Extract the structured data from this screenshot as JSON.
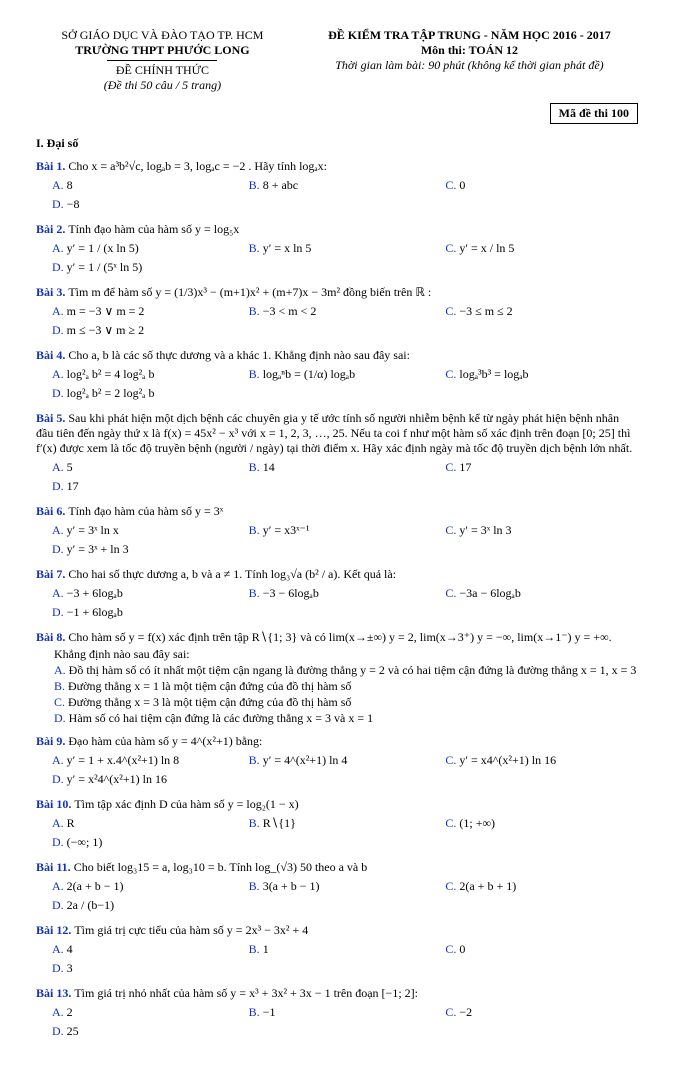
{
  "header": {
    "left1": "SỞ GIÁO DỤC VÀ ĐÀO TẠO TP. HCM",
    "left2": "TRƯỜNG THPT PHƯỚC LONG",
    "left3": "ĐỀ CHÍNH THỨC",
    "left4": "(Đề thi 50 câu / 5 trang)",
    "right1": "ĐỀ KIỂM TRA TẬP TRUNG - NĂM HỌC 2016 - 2017",
    "right2": "Môn thi: TOÁN 12",
    "right3": "Thời gian làm bài: 90 phút (không kể thời gian phát đề)",
    "code": "Mã đề thi 100"
  },
  "section": "I. Đại số",
  "problems": [
    {
      "num": "Bài 1.",
      "text": "Cho x = a³b²√c, logₐb = 3, logₐc = −2 . Hãy tính logₐx:",
      "choices": [
        "8",
        "8 + abc",
        "0",
        "−8"
      ]
    },
    {
      "num": "Bài 2.",
      "text": "Tính đạo hàm của hàm số y = log₅x",
      "choices": [
        "y′ = 1 / (x ln 5)",
        "y′ = x ln 5",
        "y′ = x / ln 5",
        "y′ = 1 / (5ˣ ln 5)"
      ]
    },
    {
      "num": "Bài 3.",
      "text": "Tìm m để hàm số y = (1/3)x³ − (m+1)x² + (m+7)x − 3m² đồng biến trên ℝ :",
      "choices": [
        "m = −3 ∨ m = 2",
        "−3 < m < 2",
        "−3 ≤ m ≤ 2",
        "m ≤ −3 ∨ m ≥ 2"
      ]
    },
    {
      "num": "Bài 4.",
      "text": "Cho a, b là các số thực dương và a khác 1. Khẳng định nào sau đây sai:",
      "choices": [
        "log²ₐ b² = 4 log²ₐ b",
        "logₐⁿb = (1/α) logₐb",
        "logₐ³b³ = logₐb",
        "log²ₐ b² = 2 log²ₐ b"
      ]
    },
    {
      "num": "Bài 5.",
      "text": "Sau khi phát hiện một dịch bệnh các chuyên gia y tế ước tính số người nhiễm bệnh kể từ ngày phát hiện bệnh nhân đầu tiên đến ngày thứ x là f(x) = 45x² − x³ với x = 1, 2, 3, …, 25. Nếu ta coi f như một hàm số xác định trên đoạn [0; 25] thì f′(x) được xem là tốc độ truyền bệnh (người / ngày) tại thời điểm x. Hãy xác định ngày mà tốc độ truyền dịch bệnh lớn nhất.",
      "choices": [
        "5",
        "14",
        "17",
        "17"
      ]
    },
    {
      "num": "Bài 6.",
      "text": "Tính đạo hàm của hàm số y = 3ˣ",
      "choices": [
        "y′ = 3ˣ ln x",
        "y′ = x3ˣ⁻¹",
        "y′ = 3ˣ ln 3",
        "y′ = 3ˣ + ln 3"
      ]
    },
    {
      "num": "Bài 7.",
      "text": "Cho hai số thực dương a, b và a ≠ 1. Tính log₃√a (b² / a). Kết quả là:",
      "choices": [
        "−3 + 6logₐb",
        "−3 − 6logₐb",
        "−3a − 6logₐb",
        "−1 + 6logₐb"
      ]
    },
    {
      "num": "Bài 8.",
      "text": "Cho hàm số y = f(x) xác định trên tập R∖{1; 3} và có lim(x→±∞) y = 2, lim(x→3⁺) y = −∞, lim(x→1⁻) y = +∞.",
      "subtext": "Khẳng định nào sau đây sai:",
      "subchoices": [
        "Đồ thị hàm số có ít nhất một tiệm cận ngang là đường thẳng y = 2 và có hai tiệm cận đứng là đường thẳng x = 1, x = 3",
        "Đường thẳng x = 1 là một tiệm cận đứng của đồ thị hàm số",
        "Đường thẳng x = 3 là một tiệm cận đứng của đồ thị hàm số",
        "Hàm số có hai tiệm cận đứng là các đường thẳng x = 3 và x = 1"
      ]
    },
    {
      "num": "Bài 9.",
      "text": "Đạo hàm của hàm số y = 4^(x²+1) bằng:",
      "choices": [
        "y′ = 1 + x.4^(x²+1) ln 8",
        "y′ = 4^(x²+1) ln 4",
        "y′ = x4^(x²+1) ln 16",
        "y′ = x²4^(x²+1) ln 16"
      ]
    },
    {
      "num": "Bài 10.",
      "text": "Tìm tập xác định D của hàm số y = log₂(1 − x)",
      "choices": [
        "R",
        "R∖{1}",
        "(1; +∞)",
        "(−∞; 1)"
      ]
    },
    {
      "num": "Bài 11.",
      "text": "Cho biết log₃15 = a, log₃10 = b. Tính log_(√3) 50 theo a và b",
      "choices": [
        "2(a + b − 1)",
        "3(a + b − 1)",
        "2(a + b + 1)",
        "2a / (b−1)"
      ]
    },
    {
      "num": "Bài 12.",
      "text": "Tìm giá trị cực tiểu của hàm số y = 2x³ − 3x² + 4",
      "choices": [
        "4",
        "1",
        "0",
        "3"
      ]
    },
    {
      "num": "Bài 13.",
      "text": "Tìm giá trị nhỏ nhất của hàm số y = x³ + 3x² + 3x − 1 trên đoạn [−1; 2]:",
      "choices": [
        "2",
        "−1",
        "−2",
        "25"
      ]
    }
  ],
  "labels": [
    "A.",
    "B.",
    "C.",
    "D."
  ]
}
